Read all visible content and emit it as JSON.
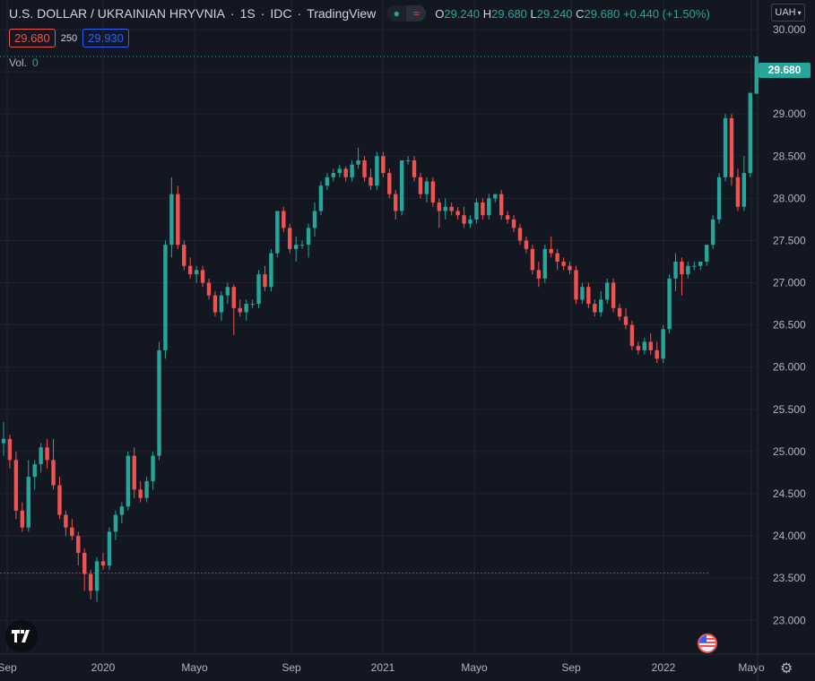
{
  "header": {
    "symbol": "U.S. DOLLAR / UKRAINIAN HRYVNIA",
    "interval": "1S",
    "source": "IDC",
    "platform": "TradingView",
    "ohlc": {
      "o_label": "O",
      "o": "29.240",
      "h_label": "H",
      "h": "29.680",
      "l_label": "L",
      "l": "29.240",
      "c_label": "C",
      "c": "29.680",
      "change": "+0.440 (+1.50%)"
    },
    "bid": "29.680",
    "spread": "250",
    "ask": "29.930",
    "vol_label": "Vol.",
    "vol_value": "0",
    "currency": "UAH"
  },
  "last_price_tag": "29.680",
  "colors": {
    "up": "#26a69a",
    "down": "#ef5350",
    "background": "#131722",
    "grid": "#1f2433",
    "axis_text": "#b2b5be"
  },
  "icons": [
    "tradingview-logo-icon",
    "us-flag-icon",
    "settings-gear-icon",
    "chevron-down-icon"
  ],
  "chart_data": {
    "type": "candlestick",
    "ylim": [
      22.6,
      30.35
    ],
    "yticks": [
      "30.000",
      "29.500",
      "29.000",
      "28.500",
      "28.000",
      "27.500",
      "27.000",
      "26.500",
      "26.000",
      "25.500",
      "25.000",
      "24.500",
      "24.000",
      "23.500",
      "23.000"
    ],
    "xticks": [
      "Sep",
      "2020",
      "Mayo",
      "Sep",
      "2021",
      "Mayo",
      "Sep",
      "2022",
      "Mayo"
    ],
    "last_price": 29.68,
    "low_reference_line": 23.56,
    "bars": [
      [
        25.1,
        25.35,
        24.95,
        25.15
      ],
      [
        25.15,
        25.2,
        24.8,
        24.9
      ],
      [
        24.9,
        25.0,
        24.2,
        24.3
      ],
      [
        24.3,
        24.4,
        24.05,
        24.1
      ],
      [
        24.1,
        24.9,
        24.05,
        24.7
      ],
      [
        24.7,
        24.9,
        24.55,
        24.85
      ],
      [
        24.85,
        25.1,
        24.75,
        25.05
      ],
      [
        25.05,
        25.15,
        24.8,
        24.9
      ],
      [
        24.9,
        25.15,
        24.55,
        24.6
      ],
      [
        24.6,
        24.7,
        24.2,
        24.25
      ],
      [
        24.25,
        24.3,
        24.0,
        24.1
      ],
      [
        24.1,
        24.2,
        23.95,
        24.0
      ],
      [
        24.0,
        24.05,
        23.65,
        23.8
      ],
      [
        23.8,
        23.85,
        23.35,
        23.55
      ],
      [
        23.55,
        23.6,
        23.25,
        23.35
      ],
      [
        23.35,
        23.75,
        23.22,
        23.7
      ],
      [
        23.7,
        23.8,
        23.6,
        23.65
      ],
      [
        23.65,
        24.1,
        23.6,
        24.05
      ],
      [
        24.05,
        24.3,
        23.95,
        24.25
      ],
      [
        24.25,
        24.4,
        24.15,
        24.35
      ],
      [
        24.35,
        25.0,
        24.3,
        24.95
      ],
      [
        24.95,
        25.05,
        24.45,
        24.55
      ],
      [
        24.55,
        24.65,
        24.4,
        24.45
      ],
      [
        24.45,
        24.7,
        24.4,
        24.65
      ],
      [
        24.65,
        25.0,
        24.55,
        24.95
      ],
      [
        24.95,
        26.3,
        24.9,
        26.2
      ],
      [
        26.2,
        27.5,
        26.1,
        27.45
      ],
      [
        27.45,
        28.25,
        27.3,
        28.05
      ],
      [
        28.05,
        28.15,
        27.4,
        27.45
      ],
      [
        27.45,
        27.5,
        27.15,
        27.2
      ],
      [
        27.2,
        27.3,
        27.05,
        27.1
      ],
      [
        27.1,
        27.2,
        27.0,
        27.15
      ],
      [
        27.15,
        27.2,
        26.95,
        27.0
      ],
      [
        27.0,
        27.05,
        26.8,
        26.85
      ],
      [
        26.85,
        26.9,
        26.6,
        26.65
      ],
      [
        26.65,
        26.9,
        26.55,
        26.85
      ],
      [
        26.85,
        27.0,
        26.75,
        26.95
      ],
      [
        26.95,
        26.98,
        26.38,
        26.7
      ],
      [
        26.7,
        26.8,
        26.6,
        26.65
      ],
      [
        26.65,
        26.8,
        26.55,
        26.75
      ],
      [
        26.75,
        26.8,
        26.7,
        26.75
      ],
      [
        26.75,
        27.15,
        26.7,
        27.1
      ],
      [
        27.1,
        27.2,
        26.9,
        26.95
      ],
      [
        26.95,
        27.4,
        26.9,
        27.35
      ],
      [
        27.35,
        27.85,
        27.3,
        27.85
      ],
      [
        27.85,
        27.9,
        27.6,
        27.65
      ],
      [
        27.65,
        27.7,
        27.35,
        27.4
      ],
      [
        27.4,
        27.55,
        27.25,
        27.45
      ],
      [
        27.45,
        27.5,
        27.4,
        27.45
      ],
      [
        27.45,
        27.7,
        27.3,
        27.65
      ],
      [
        27.65,
        27.95,
        27.55,
        27.85
      ],
      [
        27.85,
        28.2,
        27.8,
        28.15
      ],
      [
        28.15,
        28.3,
        28.1,
        28.25
      ],
      [
        28.25,
        28.35,
        28.2,
        28.3
      ],
      [
        28.3,
        28.4,
        28.25,
        28.35
      ],
      [
        28.35,
        28.38,
        28.2,
        28.25
      ],
      [
        28.25,
        28.45,
        28.2,
        28.4
      ],
      [
        28.4,
        28.6,
        28.35,
        28.45
      ],
      [
        28.45,
        28.5,
        28.2,
        28.25
      ],
      [
        28.25,
        28.35,
        28.1,
        28.15
      ],
      [
        28.15,
        28.55,
        28.1,
        28.5
      ],
      [
        28.5,
        28.55,
        28.25,
        28.3
      ],
      [
        28.3,
        28.35,
        28.0,
        28.05
      ],
      [
        28.05,
        28.1,
        27.75,
        27.85
      ],
      [
        27.85,
        28.45,
        27.8,
        28.45
      ],
      [
        28.45,
        28.5,
        28.4,
        28.45
      ],
      [
        28.45,
        28.5,
        28.2,
        28.25
      ],
      [
        28.25,
        28.3,
        28.0,
        28.05
      ],
      [
        28.05,
        28.25,
        27.95,
        28.2
      ],
      [
        28.2,
        28.25,
        27.9,
        27.95
      ],
      [
        27.95,
        28.0,
        27.65,
        27.85
      ],
      [
        27.85,
        28.0,
        27.75,
        27.9
      ],
      [
        27.9,
        27.95,
        27.8,
        27.85
      ],
      [
        27.85,
        27.9,
        27.75,
        27.8
      ],
      [
        27.8,
        27.9,
        27.65,
        27.7
      ],
      [
        27.7,
        27.8,
        27.65,
        27.75
      ],
      [
        27.75,
        28.0,
        27.7,
        27.95
      ],
      [
        27.95,
        28.0,
        27.75,
        27.8
      ],
      [
        27.8,
        28.05,
        27.75,
        28.0
      ],
      [
        28.0,
        28.05,
        27.95,
        28.05
      ],
      [
        28.05,
        28.1,
        27.75,
        27.8
      ],
      [
        27.8,
        27.85,
        27.7,
        27.75
      ],
      [
        27.75,
        27.8,
        27.6,
        27.65
      ],
      [
        27.65,
        27.7,
        27.45,
        27.5
      ],
      [
        27.5,
        27.55,
        27.35,
        27.4
      ],
      [
        27.4,
        27.45,
        27.1,
        27.15
      ],
      [
        27.15,
        27.25,
        26.95,
        27.05
      ],
      [
        27.05,
        27.45,
        27.0,
        27.4
      ],
      [
        27.4,
        27.55,
        27.3,
        27.35
      ],
      [
        27.35,
        27.4,
        27.15,
        27.25
      ],
      [
        27.25,
        27.3,
        27.15,
        27.2
      ],
      [
        27.2,
        27.25,
        27.1,
        27.15
      ],
      [
        27.15,
        27.2,
        26.75,
        26.8
      ],
      [
        26.8,
        27.0,
        26.75,
        26.95
      ],
      [
        26.95,
        27.0,
        26.7,
        26.75
      ],
      [
        26.75,
        26.8,
        26.6,
        26.65
      ],
      [
        26.65,
        26.9,
        26.6,
        26.8
      ],
      [
        26.8,
        27.05,
        26.75,
        27.0
      ],
      [
        27.0,
        27.05,
        26.65,
        26.7
      ],
      [
        26.7,
        26.75,
        26.55,
        26.6
      ],
      [
        26.6,
        26.7,
        26.45,
        26.5
      ],
      [
        26.5,
        26.55,
        26.2,
        26.25
      ],
      [
        26.25,
        26.3,
        26.15,
        26.2
      ],
      [
        26.2,
        26.35,
        26.15,
        26.3
      ],
      [
        26.3,
        26.4,
        26.15,
        26.2
      ],
      [
        26.2,
        26.3,
        26.05,
        26.1
      ],
      [
        26.1,
        26.5,
        26.05,
        26.45
      ],
      [
        26.45,
        27.1,
        26.4,
        27.05
      ],
      [
        27.05,
        27.35,
        26.9,
        27.25
      ],
      [
        27.25,
        27.3,
        26.85,
        27.1
      ],
      [
        27.1,
        27.25,
        27.05,
        27.2
      ],
      [
        27.2,
        27.25,
        27.15,
        27.2
      ],
      [
        27.2,
        27.25,
        27.15,
        27.25
      ],
      [
        27.25,
        27.45,
        27.2,
        27.45
      ],
      [
        27.45,
        27.8,
        27.4,
        27.75
      ],
      [
        27.75,
        28.3,
        27.7,
        28.25
      ],
      [
        28.25,
        29.0,
        28.2,
        28.95
      ],
      [
        28.95,
        29.0,
        28.15,
        28.25
      ],
      [
        28.25,
        28.35,
        27.85,
        27.9
      ],
      [
        27.9,
        28.5,
        27.85,
        28.3
      ],
      [
        28.3,
        29.25,
        28.25,
        29.25
      ],
      [
        29.24,
        29.68,
        29.24,
        29.68
      ]
    ]
  }
}
